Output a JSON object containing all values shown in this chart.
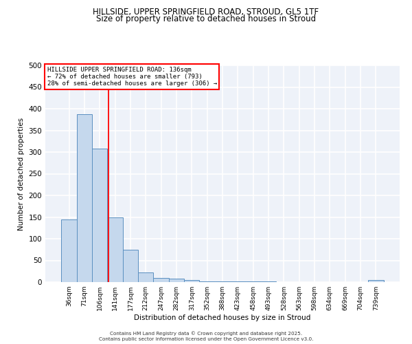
{
  "title1": "HILLSIDE, UPPER SPRINGFIELD ROAD, STROUD, GL5 1TF",
  "title2": "Size of property relative to detached houses in Stroud",
  "xlabel": "Distribution of detached houses by size in Stroud",
  "ylabel": "Number of detached properties",
  "bar_color": "#c5d8ed",
  "bar_edge_color": "#5a8fc0",
  "categories": [
    "36sqm",
    "71sqm",
    "106sqm",
    "141sqm",
    "177sqm",
    "212sqm",
    "247sqm",
    "282sqm",
    "317sqm",
    "352sqm",
    "388sqm",
    "423sqm",
    "458sqm",
    "493sqm",
    "528sqm",
    "563sqm",
    "598sqm",
    "634sqm",
    "669sqm",
    "704sqm",
    "739sqm"
  ],
  "values": [
    145,
    387,
    308,
    150,
    75,
    22,
    9,
    8,
    5,
    2,
    2,
    2,
    1,
    1,
    0,
    0,
    0,
    0,
    0,
    0,
    5
  ],
  "red_line_x": 2.55,
  "annotation_text": "HILLSIDE UPPER SPRINGFIELD ROAD: 136sqm\n← 72% of detached houses are smaller (793)\n28% of semi-detached houses are larger (306) →",
  "ylim": [
    0,
    500
  ],
  "yticks": [
    0,
    50,
    100,
    150,
    200,
    250,
    300,
    350,
    400,
    450,
    500
  ],
  "background_color": "#eef2f9",
  "grid_color": "#ffffff",
  "footer1": "Contains HM Land Registry data © Crown copyright and database right 2025.",
  "footer2": "Contains public sector information licensed under the Open Government Licence v3.0."
}
